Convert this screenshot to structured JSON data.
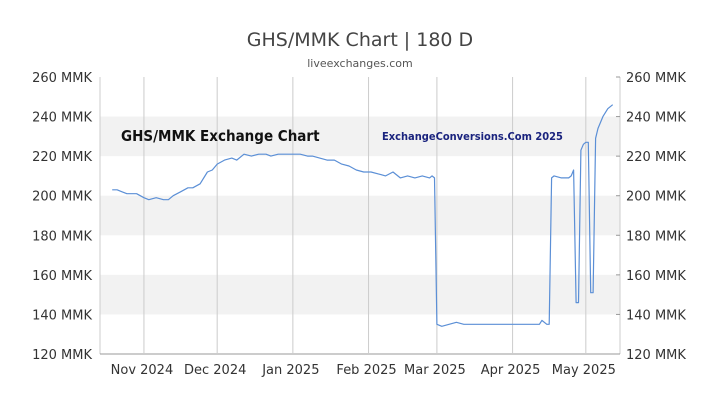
{
  "chart_data": {
    "type": "line",
    "title": "GHS/MMK Chart | 180 D",
    "subtitle": "liveexchanges.com",
    "watermark_left": "GHS/MMK Exchange Chart",
    "watermark_right": "ExchangeConversions.Com 2025",
    "ylim": [
      120,
      260
    ],
    "yticks": [
      {
        "value": 120,
        "label": "120 MMK"
      },
      {
        "value": 140,
        "label": "140 MMK"
      },
      {
        "value": 160,
        "label": "160 MMK"
      },
      {
        "value": 180,
        "label": "180 MMK"
      },
      {
        "value": 200,
        "label": "200 MMK"
      },
      {
        "value": 220,
        "label": "220 MMK"
      },
      {
        "value": 240,
        "label": "240 MMK"
      },
      {
        "value": 260,
        "label": "260 MMK"
      }
    ],
    "xlim": [
      "2024-10-14",
      "2025-05-15"
    ],
    "xticks": [
      {
        "date": "2024-11-01",
        "label": "Nov 2024"
      },
      {
        "date": "2024-12-01",
        "label": "Dec 2024"
      },
      {
        "date": "2025-01-01",
        "label": "Jan 2025"
      },
      {
        "date": "2025-02-01",
        "label": "Feb 2025"
      },
      {
        "date": "2025-03-01",
        "label": "Mar 2025"
      },
      {
        "date": "2025-04-01",
        "label": "Apr 2025"
      },
      {
        "date": "2025-05-01",
        "label": "May 2025"
      }
    ],
    "grid": true,
    "colors": {
      "line": "#5b8fd6",
      "band": "#f2f2f2",
      "grid": "#cccccc"
    },
    "series": [
      {
        "x": [
          "2024-10-19",
          "2024-10-21",
          "2024-10-23",
          "2024-10-25",
          "2024-10-29",
          "2024-11-01",
          "2024-11-03",
          "2024-11-06",
          "2024-11-09",
          "2024-11-11",
          "2024-11-13",
          "2024-11-16",
          "2024-11-19",
          "2024-11-21",
          "2024-11-24",
          "2024-11-27",
          "2024-11-29",
          "2024-12-01",
          "2024-12-04",
          "2024-12-07",
          "2024-12-09",
          "2024-12-12",
          "2024-12-15",
          "2024-12-18",
          "2024-12-21",
          "2024-12-23",
          "2024-12-26",
          "2024-12-29",
          "2025-01-01",
          "2025-01-04",
          "2025-01-07",
          "2025-01-09",
          "2025-01-12",
          "2025-01-15",
          "2025-01-18",
          "2025-01-21",
          "2025-01-24",
          "2025-01-27",
          "2025-01-30",
          "2025-02-02",
          "2025-02-05",
          "2025-02-08",
          "2025-02-11",
          "2025-02-14",
          "2025-02-17",
          "2025-02-20",
          "2025-02-23",
          "2025-02-26",
          "2025-02-27",
          "2025-02-28",
          "2025-03-01",
          "2025-03-03",
          "2025-03-06",
          "2025-03-09",
          "2025-03-12",
          "2025-03-18",
          "2025-03-25",
          "2025-04-01",
          "2025-04-08",
          "2025-04-12",
          "2025-04-13",
          "2025-04-15",
          "2025-04-16",
          "2025-04-17",
          "2025-04-18",
          "2025-04-21",
          "2025-04-24",
          "2025-04-25",
          "2025-04-26",
          "2025-04-27",
          "2025-04-28",
          "2025-04-29",
          "2025-04-30",
          "2025-05-01",
          "2025-05-02",
          "2025-05-03",
          "2025-05-04",
          "2025-05-05",
          "2025-05-06",
          "2025-05-08",
          "2025-05-10",
          "2025-05-12"
        ],
        "y": [
          203,
          203,
          202,
          201,
          201,
          199,
          198,
          199,
          198,
          198,
          200,
          202,
          204,
          204,
          206,
          212,
          213,
          216,
          218,
          219,
          218,
          221,
          220,
          221,
          221,
          220,
          221,
          221,
          221,
          221,
          220,
          220,
          219,
          218,
          218,
          216,
          215,
          213,
          212,
          212,
          211,
          210,
          212,
          209,
          210,
          209,
          210,
          209,
          210,
          209,
          135,
          134,
          135,
          136,
          135,
          135,
          135,
          135,
          135,
          135,
          137,
          135,
          135,
          209,
          210,
          209,
          209,
          210,
          213,
          146,
          146,
          223,
          226,
          227,
          227,
          151,
          151,
          229,
          234,
          240,
          244,
          246
        ]
      }
    ]
  }
}
